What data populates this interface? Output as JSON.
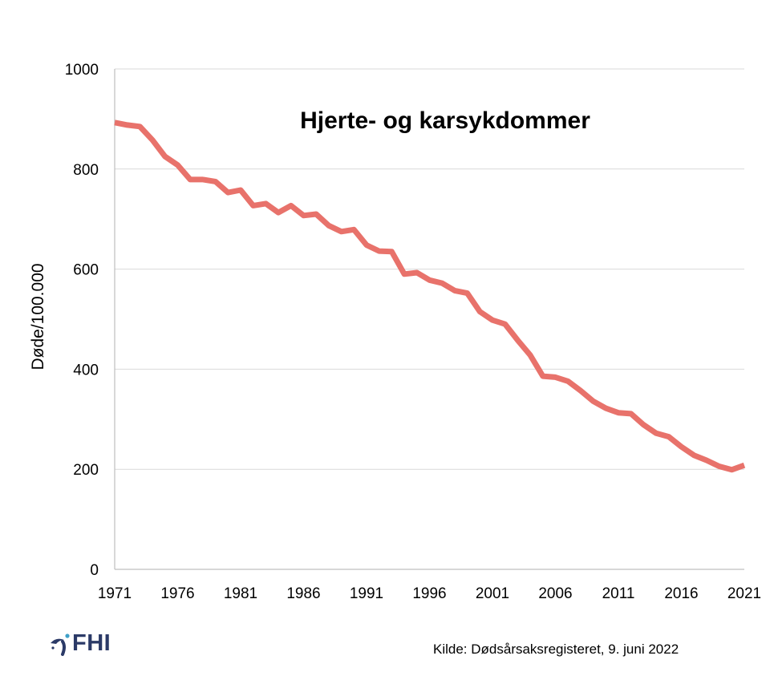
{
  "chart_data": {
    "type": "line",
    "title": "Hjerte- og karsykdommer",
    "xlabel": "",
    "ylabel": "Døde/100.000",
    "xlim": [
      1971,
      2021
    ],
    "ylim": [
      0,
      1000
    ],
    "yticks": [
      0,
      200,
      400,
      600,
      800,
      1000
    ],
    "xtick_labels": [
      "1971",
      "1976",
      "1981",
      "1986",
      "1991",
      "1996",
      "2001",
      "2006",
      "2011",
      "2016",
      "2021"
    ],
    "ytick_labels": [
      "0",
      "200",
      "400",
      "600",
      "800",
      "1000"
    ],
    "grid": "horizontal",
    "legend": "none",
    "series": [
      {
        "color": "#e8726b",
        "x": [
          1971,
          1972,
          1973,
          1974,
          1975,
          1976,
          1977,
          1978,
          1979,
          1980,
          1981,
          1982,
          1983,
          1984,
          1985,
          1986,
          1987,
          1988,
          1989,
          1990,
          1991,
          1992,
          1993,
          1994,
          1995,
          1996,
          1997,
          1998,
          1999,
          2000,
          2001,
          2002,
          2003,
          2004,
          2005,
          2006,
          2007,
          2008,
          2009,
          2010,
          2011,
          2012,
          2013,
          2014,
          2015,
          2016,
          2017,
          2018,
          2019,
          2020,
          2021
        ],
        "y": [
          893,
          888,
          885,
          858,
          825,
          808,
          779,
          779,
          775,
          753,
          758,
          727,
          731,
          713,
          727,
          707,
          710,
          687,
          675,
          679,
          648,
          636,
          635,
          590,
          593,
          578,
          572,
          557,
          552,
          515,
          498,
          490,
          458,
          428,
          386,
          384,
          376,
          357,
          336,
          322,
          313,
          311,
          289,
          272,
          265,
          245,
          228,
          218,
          206,
          199,
          208
        ]
      }
    ]
  },
  "source": "Kilde: Dødsårsaksregisteret, 9. juni 2022",
  "logo": {
    "text": "FHI",
    "color": "#2b3a67"
  }
}
